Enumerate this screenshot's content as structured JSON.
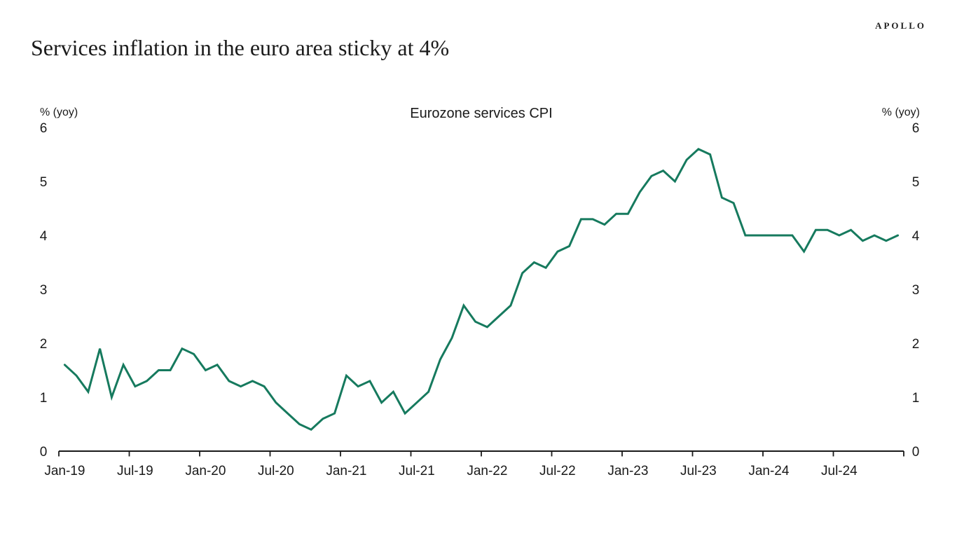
{
  "brand": "APOLLO",
  "header": {
    "title": "Services inflation in the euro area sticky at 4%"
  },
  "chart_data": {
    "type": "line",
    "title": "Eurozone services CPI",
    "series_name": "Eurozone services CPI",
    "unit_label": "% (yoy)",
    "grid": false,
    "legend": "none",
    "dual_y_axis": true,
    "ylim": [
      0,
      6
    ],
    "y_ticks": [
      0,
      1,
      2,
      3,
      4,
      5,
      6
    ],
    "x_tick_labels": [
      "Jan-19",
      "Jul-19",
      "Jan-20",
      "Jul-20",
      "Jan-21",
      "Jul-21",
      "Jan-22",
      "Jul-22",
      "Jan-23",
      "Jul-23",
      "Jan-24",
      "Jul-24"
    ],
    "x": [
      "Jan-19",
      "Feb-19",
      "Mar-19",
      "Apr-19",
      "May-19",
      "Jun-19",
      "Jul-19",
      "Aug-19",
      "Sep-19",
      "Oct-19",
      "Nov-19",
      "Dec-19",
      "Jan-20",
      "Feb-20",
      "Mar-20",
      "Apr-20",
      "May-20",
      "Jun-20",
      "Jul-20",
      "Aug-20",
      "Sep-20",
      "Oct-20",
      "Nov-20",
      "Dec-20",
      "Jan-21",
      "Feb-21",
      "Mar-21",
      "Apr-21",
      "May-21",
      "Jun-21",
      "Jul-21",
      "Aug-21",
      "Sep-21",
      "Oct-21",
      "Nov-21",
      "Dec-21",
      "Jan-22",
      "Feb-22",
      "Mar-22",
      "Apr-22",
      "May-22",
      "Jun-22",
      "Jul-22",
      "Aug-22",
      "Sep-22",
      "Oct-22",
      "Nov-22",
      "Dec-22",
      "Jan-23",
      "Feb-23",
      "Mar-23",
      "Apr-23",
      "May-23",
      "Jun-23",
      "Jul-23",
      "Aug-23",
      "Sep-23",
      "Oct-23",
      "Nov-23",
      "Dec-23",
      "Jan-24",
      "Feb-24",
      "Mar-24",
      "Apr-24",
      "May-24",
      "Jun-24",
      "Jul-24",
      "Aug-24",
      "Sep-24",
      "Oct-24",
      "Nov-24",
      "Dec-24"
    ],
    "values": [
      1.6,
      1.4,
      1.1,
      1.9,
      1.0,
      1.6,
      1.2,
      1.3,
      1.5,
      1.5,
      1.9,
      1.8,
      1.5,
      1.6,
      1.3,
      1.2,
      1.3,
      1.2,
      0.9,
      0.7,
      0.5,
      0.4,
      0.6,
      0.7,
      1.4,
      1.2,
      1.3,
      0.9,
      1.1,
      0.7,
      0.9,
      1.1,
      1.7,
      2.1,
      2.7,
      2.4,
      2.3,
      2.5,
      2.7,
      3.3,
      3.5,
      3.4,
      3.7,
      3.8,
      4.3,
      4.3,
      4.2,
      4.4,
      4.4,
      4.8,
      5.1,
      5.2,
      5.0,
      5.4,
      5.6,
      5.5,
      4.7,
      4.6,
      4.0,
      4.0,
      4.0,
      4.0,
      4.0,
      3.7,
      4.1,
      4.1,
      4.0,
      4.1,
      3.9,
      4.0,
      3.9,
      4.0
    ],
    "line_color": "#167a5e",
    "axis_color": "#1a1a1a",
    "text_color": "#1a1a1a"
  }
}
